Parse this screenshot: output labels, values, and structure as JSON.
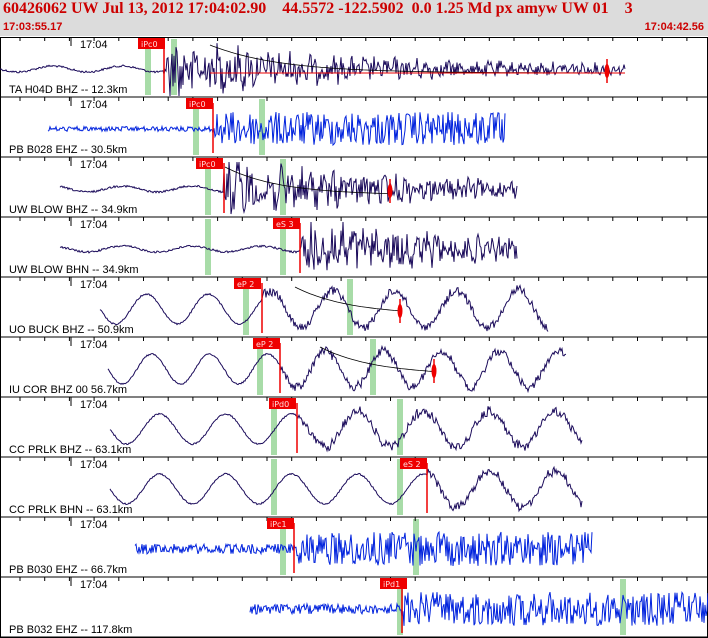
{
  "header": {
    "title": "60426062 UW Jul 13, 2012 17:04:02.90    44.5572 -122.5902  0.0 1.25 Md px amyw UW 01    3",
    "start_time": "17:03:55.17",
    "end_time": "17:04:42.56"
  },
  "colors": {
    "header_red": "#cc0000",
    "trace_dark": "#1a0a5a",
    "trace_blue": "#0022dd",
    "pick_red": "#ee0000",
    "window_green": "#a8dca8"
  },
  "chart_data": {
    "type": "line",
    "title": "60426062 UW Jul 13, 2012 17:04:02.90    44.5572 -122.5902  0.0 1.25 Md px amyw UW 01    3",
    "x_range_label": [
      "17:03:55.17",
      "17:04:42.56"
    ],
    "series": [
      {
        "name": "TA H04D BHZ -- 12.3km",
        "tick_label": "17:04",
        "pick": "iPc0",
        "color": "trace_dark",
        "style": "local"
      },
      {
        "name": "PB B028 EHZ -- 30.5km",
        "tick_label": "17:04",
        "pick": "iPc0",
        "color": "trace_blue",
        "style": "noisy"
      },
      {
        "name": "UW BLOW BHZ -- 34.9km",
        "tick_label": "17:04",
        "pick": "iPc0",
        "color": "trace_dark",
        "style": "local"
      },
      {
        "name": "UW BLOW BHN -- 34.9km",
        "tick_label": "17:04",
        "pick": "eS 3",
        "color": "trace_dark",
        "style": "local"
      },
      {
        "name": "UO BUCK BHZ -- 50.9km",
        "tick_label": "17:04",
        "pick": "eP 2",
        "color": "trace_dark",
        "style": "long"
      },
      {
        "name": "IU COR BHZ 00 56.7km",
        "tick_label": "17:04",
        "pick": "eP 2",
        "color": "trace_dark",
        "style": "long"
      },
      {
        "name": "CC PRLK BHZ -- 63.1km",
        "tick_label": "17:04",
        "pick": "iPd0",
        "color": "trace_dark",
        "style": "long"
      },
      {
        "name": "CC PRLK BHN -- 63.1km",
        "tick_label": "17:04",
        "pick": "eS 2",
        "color": "trace_dark",
        "style": "long"
      },
      {
        "name": "PB B030 EHZ -- 66.7km",
        "tick_label": "17:04",
        "pick": "iPc1",
        "color": "trace_blue",
        "style": "noisy"
      },
      {
        "name": "PB B032 EHZ -- 117.8km",
        "tick_label": "17:04",
        "pick": "iPd1",
        "color": "trace_blue",
        "style": "noisy"
      }
    ],
    "legend": "none",
    "grid": false
  }
}
